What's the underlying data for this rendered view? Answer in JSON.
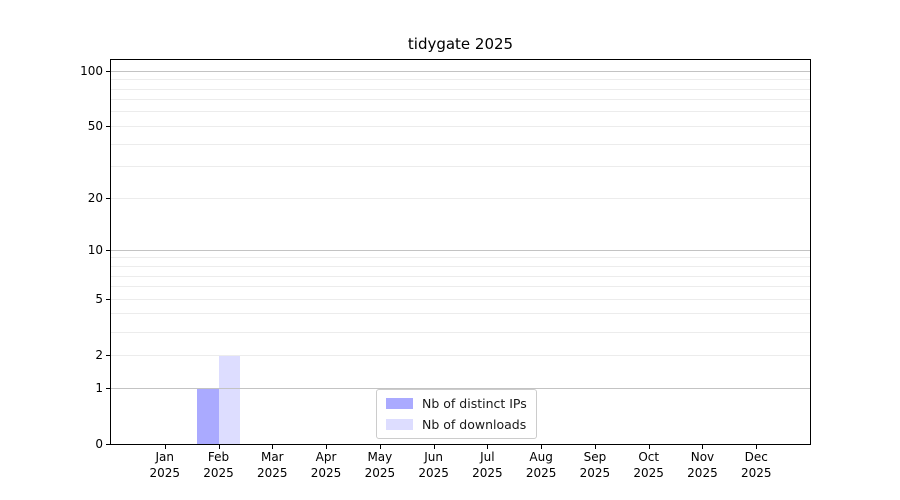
{
  "colors": {
    "grid_major": "#c3c3c3",
    "grid_minor": "#ececec",
    "axis": "#000000",
    "legend_border": "#cccccc"
  },
  "chart_data": {
    "type": "bar",
    "title": "tidygate 2025",
    "x": {
      "months": [
        "Jan",
        "Feb",
        "Mar",
        "Apr",
        "May",
        "Jun",
        "Jul",
        "Aug",
        "Sep",
        "Oct",
        "Nov",
        "Dec"
      ],
      "year": "2025"
    },
    "series": [
      {
        "name": "Nb of distinct IPs",
        "color": "#aaaaff",
        "values": [
          0,
          1,
          0,
          0,
          0,
          0,
          0,
          0,
          0,
          0,
          0,
          0
        ]
      },
      {
        "name": "Nb of downloads",
        "color": "#ddddff",
        "values": [
          0,
          2,
          0,
          0,
          0,
          0,
          0,
          0,
          0,
          0,
          0,
          0
        ]
      }
    ],
    "y_axis": {
      "scale": "log1p",
      "ticks": [
        0,
        1,
        2,
        5,
        10,
        20,
        50,
        100
      ],
      "minor_gridlines": [
        3,
        4,
        6,
        7,
        8,
        9,
        30,
        40,
        60,
        70,
        80,
        90
      ],
      "decade_gridlines": [
        1,
        10,
        100
      ],
      "max": 115
    },
    "legend": {
      "position": "lower center"
    },
    "grid": true
  }
}
